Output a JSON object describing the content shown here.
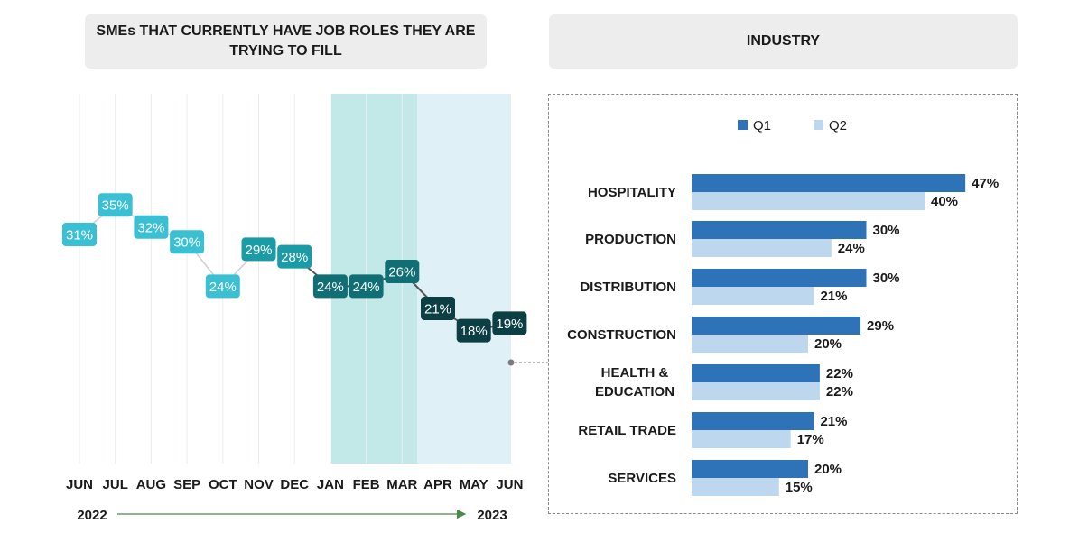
{
  "headers": {
    "left": "SMEs THAT CURRENTLY HAVE JOB ROLES THEY ARE TRYING TO FILL",
    "right": "INDUSTRY"
  },
  "timeline": {
    "start_year": "2022",
    "end_year": "2023"
  },
  "colors": {
    "light_teal": "#3bbfd3",
    "mid_teal": "#1b9ba6",
    "dark_teal": "#0f6f74",
    "darkest_teal": "#0b3f44",
    "q1_bar": "#2e72b8",
    "q2_bar": "#bdd7ee",
    "band_early": "#c3e8e8",
    "band_late": "#dff1f6"
  },
  "chart_data": [
    {
      "type": "line",
      "title": "SMEs THAT CURRENTLY HAVE JOB ROLES THEY ARE TRYING TO FILL",
      "categories": [
        "JUN",
        "JUL",
        "AUG",
        "SEP",
        "OCT",
        "NOV",
        "DEC",
        "JAN",
        "FEB",
        "MAR",
        "APR",
        "MAY",
        "JUN"
      ],
      "values": [
        31,
        35,
        32,
        30,
        24,
        29,
        28,
        24,
        24,
        26,
        21,
        18,
        19
      ],
      "labels": [
        "31%",
        "35%",
        "32%",
        "30%",
        "24%",
        "29%",
        "28%",
        "24%",
        "24%",
        "26%",
        "21%",
        "18%",
        "19%"
      ],
      "unit": "%",
      "years": [
        "2022",
        "2023"
      ]
    },
    {
      "type": "bar",
      "orientation": "horizontal",
      "categories": [
        "HOSPITALITY",
        "PRODUCTION",
        "DISTRIBUTION",
        "CONSTRUCTION",
        "HEALTH & EDUCATION",
        "RETAIL TRADE",
        "SERVICES"
      ],
      "series": [
        {
          "name": "Q1",
          "values": [
            47,
            30,
            30,
            29,
            22,
            21,
            20
          ],
          "labels": [
            "47%",
            "30%",
            "30%",
            "29%",
            "22%",
            "21%",
            "20%"
          ]
        },
        {
          "name": "Q2",
          "values": [
            40,
            24,
            21,
            20,
            22,
            17,
            15
          ],
          "labels": [
            "40%",
            "24%",
            "21%",
            "20%",
            "22%",
            "17%",
            "15%"
          ]
        }
      ],
      "legend": "top",
      "unit": "%"
    }
  ]
}
